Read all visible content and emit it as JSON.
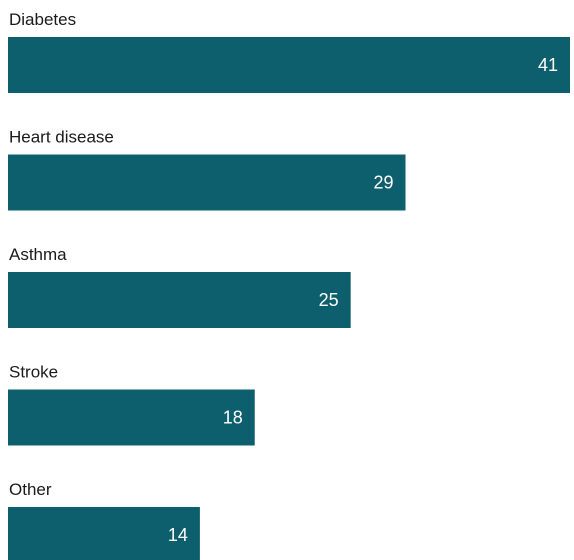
{
  "chart_data": {
    "type": "bar",
    "orientation": "horizontal",
    "categories": [
      "Diabetes",
      "Heart disease",
      "Asthma",
      "Stroke",
      "Other"
    ],
    "values": [
      41,
      29,
      25,
      18,
      14
    ],
    "title": "",
    "xlabel": "",
    "ylabel": "",
    "grid": false,
    "legend": "none",
    "bar_color": "#0e5f6e",
    "label_color": "#ffffff",
    "value_labels": "inside-end"
  }
}
